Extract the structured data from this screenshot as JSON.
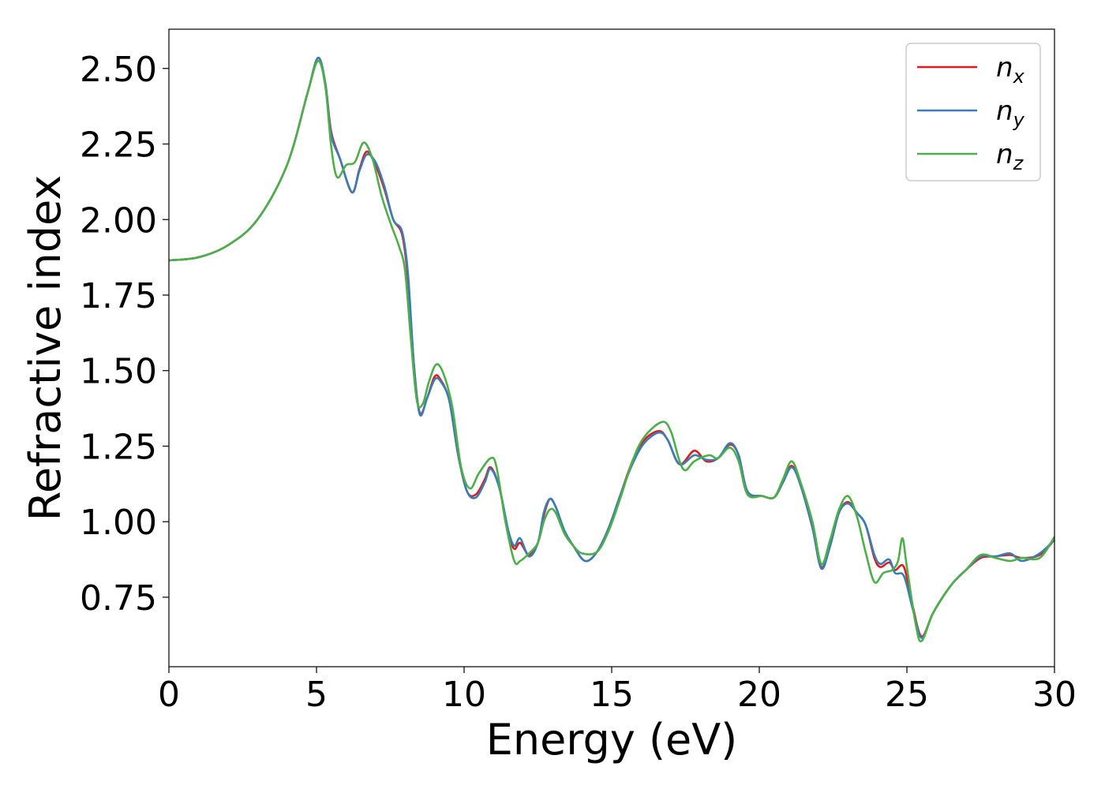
{
  "chart_data": {
    "type": "line",
    "xlabel": "Energy (eV)",
    "ylabel": "Refractive index",
    "xlim": [
      0,
      30
    ],
    "ylim": [
      0.52,
      2.63
    ],
    "xticks": [
      0,
      5,
      10,
      15,
      20,
      25,
      30
    ],
    "xtick_labels": [
      "0",
      "5",
      "10",
      "15",
      "20",
      "25",
      "30"
    ],
    "yticks": [
      0.75,
      1.0,
      1.25,
      1.5,
      1.75,
      2.0,
      2.25,
      2.5
    ],
    "ytick_labels": [
      "0.75",
      "1.00",
      "1.25",
      "1.50",
      "1.75",
      "2.00",
      "2.25",
      "2.50"
    ],
    "grid": false,
    "legend_position": "top-right",
    "series": [
      {
        "name": "n",
        "subscript": "x",
        "color": "#e41a1c",
        "points": [
          [
            0,
            1.865
          ],
          [
            1,
            1.875
          ],
          [
            2,
            1.915
          ],
          [
            3,
            2.0
          ],
          [
            4,
            2.18
          ],
          [
            4.7,
            2.42
          ],
          [
            5.05,
            2.535
          ],
          [
            5.3,
            2.45
          ],
          [
            5.5,
            2.29
          ],
          [
            5.8,
            2.2
          ],
          [
            6.2,
            2.09
          ],
          [
            6.45,
            2.165
          ],
          [
            6.7,
            2.225
          ],
          [
            7.0,
            2.18
          ],
          [
            7.3,
            2.1
          ],
          [
            7.6,
            2.0
          ],
          [
            7.9,
            1.95
          ],
          [
            8.1,
            1.8
          ],
          [
            8.3,
            1.52
          ],
          [
            8.5,
            1.36
          ],
          [
            8.75,
            1.41
          ],
          [
            9.0,
            1.48
          ],
          [
            9.2,
            1.47
          ],
          [
            9.5,
            1.4
          ],
          [
            9.8,
            1.22
          ],
          [
            10.1,
            1.1
          ],
          [
            10.4,
            1.09
          ],
          [
            10.7,
            1.14
          ],
          [
            10.9,
            1.18
          ],
          [
            11.2,
            1.11
          ],
          [
            11.5,
            0.96
          ],
          [
            11.7,
            0.91
          ],
          [
            11.9,
            0.93
          ],
          [
            12.2,
            0.89
          ],
          [
            12.5,
            0.93
          ],
          [
            12.7,
            1.02
          ],
          [
            12.9,
            1.075
          ],
          [
            13.1,
            1.05
          ],
          [
            13.4,
            0.97
          ],
          [
            13.7,
            0.92
          ],
          [
            14.1,
            0.87
          ],
          [
            14.5,
            0.9
          ],
          [
            14.9,
            0.98
          ],
          [
            15.3,
            1.09
          ],
          [
            15.7,
            1.2
          ],
          [
            16.1,
            1.27
          ],
          [
            16.6,
            1.3
          ],
          [
            16.9,
            1.27
          ],
          [
            17.3,
            1.19
          ],
          [
            17.8,
            1.235
          ],
          [
            18.2,
            1.2
          ],
          [
            18.6,
            1.21
          ],
          [
            19.0,
            1.255
          ],
          [
            19.3,
            1.22
          ],
          [
            19.6,
            1.1
          ],
          [
            20.1,
            1.085
          ],
          [
            20.5,
            1.08
          ],
          [
            20.8,
            1.13
          ],
          [
            21.1,
            1.185
          ],
          [
            21.4,
            1.12
          ],
          [
            21.8,
            0.98
          ],
          [
            22.1,
            0.85
          ],
          [
            22.4,
            0.92
          ],
          [
            22.7,
            1.03
          ],
          [
            23.0,
            1.065
          ],
          [
            23.3,
            1.03
          ],
          [
            23.6,
            0.99
          ],
          [
            23.9,
            0.88
          ],
          [
            24.1,
            0.85
          ],
          [
            24.4,
            0.865
          ],
          [
            24.6,
            0.84
          ],
          [
            24.9,
            0.85
          ],
          [
            25.2,
            0.72
          ],
          [
            25.5,
            0.62
          ],
          [
            25.9,
            0.7
          ],
          [
            26.5,
            0.79
          ],
          [
            27.0,
            0.84
          ],
          [
            27.5,
            0.88
          ],
          [
            28.0,
            0.885
          ],
          [
            28.5,
            0.89
          ],
          [
            28.9,
            0.88
          ],
          [
            29.5,
            0.89
          ],
          [
            30,
            0.94
          ]
        ]
      },
      {
        "name": "n",
        "subscript": "y",
        "color": "#377eb8",
        "points": [
          [
            0,
            1.865
          ],
          [
            1,
            1.875
          ],
          [
            2,
            1.915
          ],
          [
            3,
            2.0
          ],
          [
            4,
            2.18
          ],
          [
            4.7,
            2.42
          ],
          [
            5.05,
            2.535
          ],
          [
            5.3,
            2.45
          ],
          [
            5.5,
            2.28
          ],
          [
            5.8,
            2.2
          ],
          [
            6.2,
            2.09
          ],
          [
            6.45,
            2.16
          ],
          [
            6.7,
            2.215
          ],
          [
            7.0,
            2.19
          ],
          [
            7.3,
            2.11
          ],
          [
            7.6,
            2.0
          ],
          [
            7.9,
            1.96
          ],
          [
            8.1,
            1.82
          ],
          [
            8.3,
            1.52
          ],
          [
            8.5,
            1.355
          ],
          [
            8.75,
            1.41
          ],
          [
            9.0,
            1.47
          ],
          [
            9.2,
            1.465
          ],
          [
            9.5,
            1.4
          ],
          [
            9.8,
            1.22
          ],
          [
            10.1,
            1.1
          ],
          [
            10.4,
            1.08
          ],
          [
            10.7,
            1.13
          ],
          [
            10.9,
            1.175
          ],
          [
            11.2,
            1.11
          ],
          [
            11.5,
            0.97
          ],
          [
            11.7,
            0.92
          ],
          [
            11.9,
            0.945
          ],
          [
            12.2,
            0.885
          ],
          [
            12.5,
            0.93
          ],
          [
            12.7,
            1.03
          ],
          [
            12.9,
            1.075
          ],
          [
            13.1,
            1.05
          ],
          [
            13.4,
            0.97
          ],
          [
            13.7,
            0.92
          ],
          [
            14.1,
            0.87
          ],
          [
            14.5,
            0.9
          ],
          [
            14.9,
            0.98
          ],
          [
            15.3,
            1.09
          ],
          [
            15.7,
            1.19
          ],
          [
            16.1,
            1.26
          ],
          [
            16.6,
            1.295
          ],
          [
            16.9,
            1.27
          ],
          [
            17.3,
            1.19
          ],
          [
            17.8,
            1.22
          ],
          [
            18.2,
            1.205
          ],
          [
            18.6,
            1.21
          ],
          [
            19.0,
            1.26
          ],
          [
            19.3,
            1.22
          ],
          [
            19.6,
            1.1
          ],
          [
            20.1,
            1.085
          ],
          [
            20.5,
            1.08
          ],
          [
            20.8,
            1.13
          ],
          [
            21.1,
            1.18
          ],
          [
            21.4,
            1.12
          ],
          [
            21.8,
            0.98
          ],
          [
            22.1,
            0.845
          ],
          [
            22.4,
            0.92
          ],
          [
            22.7,
            1.03
          ],
          [
            23.0,
            1.06
          ],
          [
            23.3,
            1.03
          ],
          [
            23.6,
            0.99
          ],
          [
            23.9,
            0.89
          ],
          [
            24.1,
            0.86
          ],
          [
            24.4,
            0.875
          ],
          [
            24.6,
            0.83
          ],
          [
            24.9,
            0.82
          ],
          [
            25.2,
            0.71
          ],
          [
            25.5,
            0.615
          ],
          [
            25.9,
            0.7
          ],
          [
            26.5,
            0.79
          ],
          [
            27.0,
            0.84
          ],
          [
            27.5,
            0.885
          ],
          [
            28.0,
            0.885
          ],
          [
            28.5,
            0.895
          ],
          [
            28.9,
            0.87
          ],
          [
            29.5,
            0.895
          ],
          [
            30,
            0.94
          ]
        ]
      },
      {
        "name": "n",
        "subscript": "z",
        "color": "#4daf4a",
        "points": [
          [
            0,
            1.865
          ],
          [
            1,
            1.875
          ],
          [
            2,
            1.915
          ],
          [
            3,
            2.0
          ],
          [
            4,
            2.18
          ],
          [
            4.7,
            2.42
          ],
          [
            5.05,
            2.525
          ],
          [
            5.3,
            2.44
          ],
          [
            5.5,
            2.24
          ],
          [
            5.7,
            2.14
          ],
          [
            6.0,
            2.18
          ],
          [
            6.3,
            2.19
          ],
          [
            6.6,
            2.255
          ],
          [
            6.9,
            2.2
          ],
          [
            7.2,
            2.08
          ],
          [
            7.5,
            1.99
          ],
          [
            7.8,
            1.91
          ],
          [
            8.0,
            1.83
          ],
          [
            8.2,
            1.6
          ],
          [
            8.4,
            1.4
          ],
          [
            8.6,
            1.39
          ],
          [
            8.8,
            1.46
          ],
          [
            9.05,
            1.52
          ],
          [
            9.3,
            1.49
          ],
          [
            9.6,
            1.38
          ],
          [
            9.9,
            1.18
          ],
          [
            10.2,
            1.11
          ],
          [
            10.5,
            1.16
          ],
          [
            10.9,
            1.21
          ],
          [
            11.1,
            1.18
          ],
          [
            11.4,
            1.0
          ],
          [
            11.7,
            0.87
          ],
          [
            11.9,
            0.87
          ],
          [
            12.2,
            0.895
          ],
          [
            12.5,
            0.93
          ],
          [
            12.7,
            1.0
          ],
          [
            12.9,
            1.04
          ],
          [
            13.1,
            1.03
          ],
          [
            13.4,
            0.96
          ],
          [
            13.7,
            0.92
          ],
          [
            14.0,
            0.895
          ],
          [
            14.5,
            0.9
          ],
          [
            14.9,
            0.97
          ],
          [
            15.3,
            1.08
          ],
          [
            15.7,
            1.2
          ],
          [
            16.1,
            1.28
          ],
          [
            16.7,
            1.33
          ],
          [
            17.0,
            1.3
          ],
          [
            17.3,
            1.2
          ],
          [
            17.5,
            1.17
          ],
          [
            17.8,
            1.2
          ],
          [
            18.3,
            1.22
          ],
          [
            18.6,
            1.21
          ],
          [
            19.0,
            1.245
          ],
          [
            19.3,
            1.2
          ],
          [
            19.6,
            1.09
          ],
          [
            20.1,
            1.085
          ],
          [
            20.5,
            1.08
          ],
          [
            20.8,
            1.14
          ],
          [
            21.1,
            1.2
          ],
          [
            21.4,
            1.13
          ],
          [
            21.8,
            1.0
          ],
          [
            22.1,
            0.86
          ],
          [
            22.4,
            0.94
          ],
          [
            22.7,
            1.04
          ],
          [
            23.0,
            1.085
          ],
          [
            23.3,
            1.02
          ],
          [
            23.6,
            0.9
          ],
          [
            23.9,
            0.8
          ],
          [
            24.2,
            0.83
          ],
          [
            24.5,
            0.84
          ],
          [
            24.7,
            0.87
          ],
          [
            24.85,
            0.945
          ],
          [
            25.0,
            0.85
          ],
          [
            25.3,
            0.66
          ],
          [
            25.5,
            0.605
          ],
          [
            25.9,
            0.7
          ],
          [
            26.5,
            0.79
          ],
          [
            27.0,
            0.84
          ],
          [
            27.5,
            0.89
          ],
          [
            28.0,
            0.88
          ],
          [
            28.5,
            0.87
          ],
          [
            28.9,
            0.88
          ],
          [
            29.5,
            0.88
          ],
          [
            30,
            0.95
          ]
        ]
      }
    ]
  }
}
